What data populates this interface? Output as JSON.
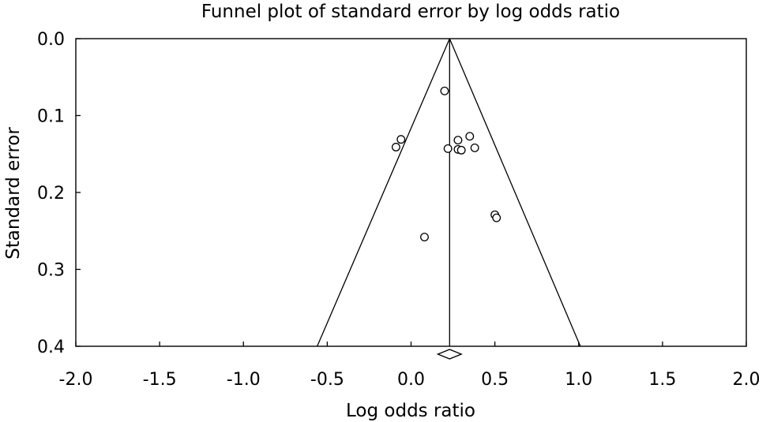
{
  "chart_data": {
    "type": "scatter",
    "title": "Funnel plot of standard error by log odds ratio",
    "xlabel": "Log odds ratio",
    "ylabel": "Standard error",
    "xlim": [
      -2.0,
      2.0
    ],
    "ylim": [
      0.0,
      0.4
    ],
    "y_inverted": true,
    "x_ticks": [
      "-2.0",
      "-1.5",
      "-1.0",
      "-0.5",
      "0.0",
      "0.5",
      "1.0",
      "1.5",
      "2.0"
    ],
    "y_ticks": [
      "0.0",
      "0.1",
      "0.2",
      "0.3",
      "0.4"
    ],
    "grid": false,
    "legend": "none",
    "pooled_log_odds_ratio": 0.23,
    "funnel_bounds_at_0_4": [
      -0.56,
      1.01
    ],
    "summary_diamond": {
      "center": 0.23,
      "lower": 0.16,
      "upper": 0.3
    },
    "points": [
      {
        "x": 0.2,
        "y": 0.068
      },
      {
        "x": -0.09,
        "y": 0.141
      },
      {
        "x": -0.06,
        "y": 0.131
      },
      {
        "x": 0.22,
        "y": 0.143
      },
      {
        "x": 0.28,
        "y": 0.132
      },
      {
        "x": 0.28,
        "y": 0.144
      },
      {
        "x": 0.3,
        "y": 0.145
      },
      {
        "x": 0.35,
        "y": 0.127
      },
      {
        "x": 0.38,
        "y": 0.142
      },
      {
        "x": 0.5,
        "y": 0.229
      },
      {
        "x": 0.51,
        "y": 0.233
      },
      {
        "x": 0.08,
        "y": 0.258
      }
    ]
  }
}
